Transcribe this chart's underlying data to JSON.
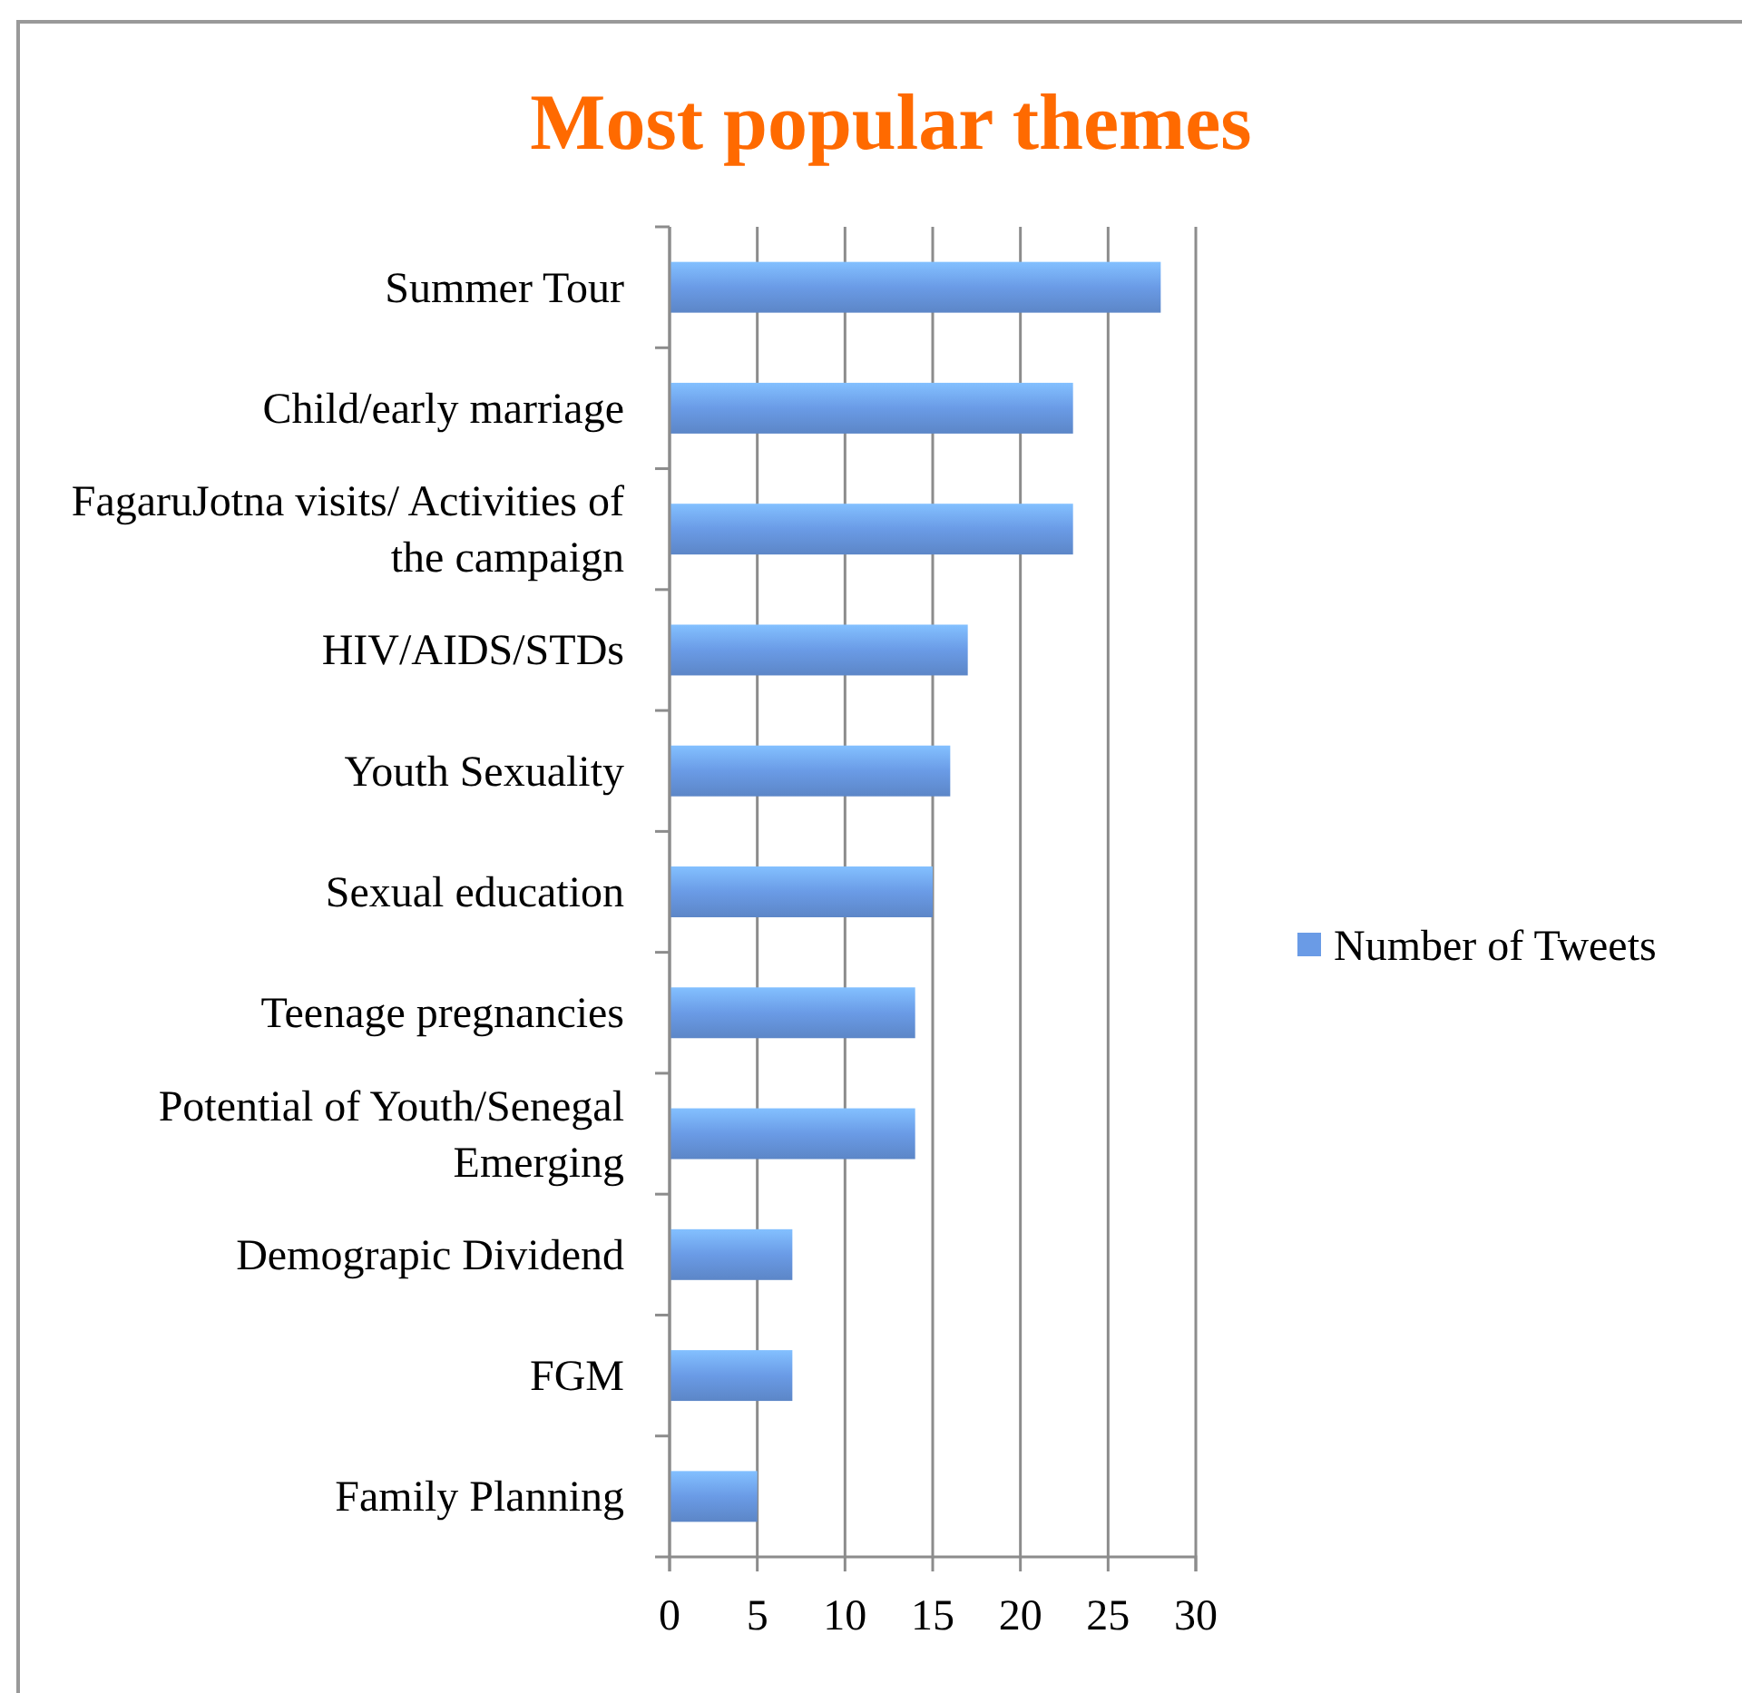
{
  "chart_data": {
    "type": "bar",
    "orientation": "horizontal",
    "title": "Most popular themes",
    "categories": [
      "Summer Tour",
      "Child/early marriage",
      "FagaruJotna visits/ Activities of the campaign",
      "HIV/AIDS/STDs",
      "Youth Sexuality",
      "Sexual education",
      "Teenage pregnancies",
      "Potential of Youth/Senegal Emerging",
      "Demograpic Dividend",
      "FGM",
      "Family Planning"
    ],
    "series": [
      {
        "name": "Number of Tweets",
        "color": "#6a9be6",
        "values": [
          28,
          23,
          23,
          17,
          16,
          15,
          14,
          14,
          7,
          7,
          5
        ]
      }
    ],
    "xlim": [
      0,
      30
    ],
    "xticks": [
      0,
      5,
      10,
      15,
      20,
      25,
      30
    ],
    "grid": "x",
    "legend": "right"
  }
}
